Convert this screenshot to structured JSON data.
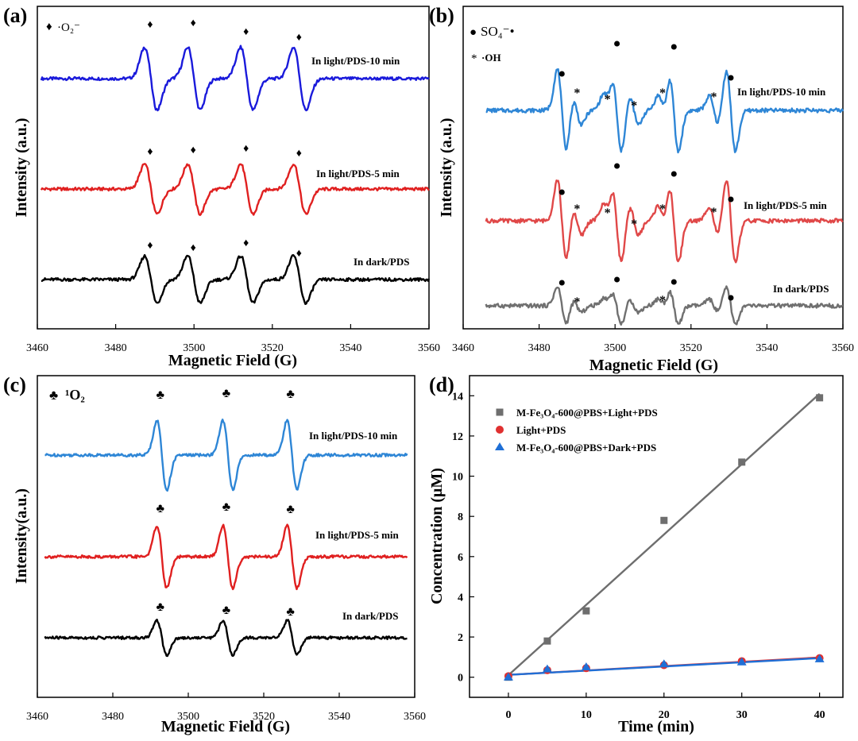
{
  "chart_data": [
    {
      "type": "line",
      "panel": "(a)",
      "xlabel": "Magnetic Field (G)",
      "ylabel": "Intensity (a.u.)",
      "xlim": [
        3460,
        3560
      ],
      "xticks": [
        "3460",
        "3480",
        "3500",
        "3520",
        "3540",
        "3560"
      ],
      "legend": [
        {
          "symbol": "♦",
          "label": "·O₂⁻"
        }
      ],
      "peak_positions": [
        3489,
        3500,
        3513.5,
        3527
      ],
      "series": [
        {
          "name": "In light/PDS-10 min",
          "color": "#1a1adb",
          "amplitude": 1.0,
          "marker": "♦"
        },
        {
          "name": "In light/PDS-5 min",
          "color": "#e02020",
          "amplitude": 0.8,
          "marker": "♦"
        },
        {
          "name": "In dark/PDS",
          "color": "#000000",
          "amplitude": 0.75,
          "marker": "♦"
        }
      ]
    },
    {
      "type": "line",
      "panel": "(b)",
      "xlabel": "Magnetic Field (G)",
      "ylabel": "Intensity (a.u.)",
      "xlim": [
        3460,
        3560
      ],
      "xticks": [
        "3460",
        "3480",
        "3500",
        "3520",
        "3540",
        "3560"
      ],
      "legend": [
        {
          "symbol": "●",
          "label": "SO₄⁻•"
        },
        {
          "symbol": "*",
          "label": "·OH"
        }
      ],
      "sulfate_peaks": [
        3486,
        3500.5,
        3515.5,
        3530.5
      ],
      "hydroxyl_peaks": [
        3490,
        3498,
        3505,
        3512.5,
        3526
      ],
      "series": [
        {
          "name": "In light/PDS-10 min",
          "color": "#2e86d6",
          "amplitude": 1.0
        },
        {
          "name": "In light/PDS-5 min",
          "color": "#e04848",
          "amplitude": 1.0
        },
        {
          "name": "In dark/PDS",
          "color": "#707070",
          "amplitude": 0.45
        }
      ]
    },
    {
      "type": "line",
      "panel": "(c)",
      "xlabel": "Magnetic Field (G)",
      "ylabel": "Intensity(a.u.)",
      "xlim": [
        3460,
        3560
      ],
      "xticks": [
        "3460",
        "3480",
        "3500",
        "3520",
        "3540",
        "3560"
      ],
      "legend": [
        {
          "symbol": "♣",
          "label": "¹O₂"
        }
      ],
      "peak_positions": [
        3493,
        3510.5,
        3527.5
      ],
      "series": [
        {
          "name": "In light/PDS-10 min",
          "color": "#2e86d6",
          "amplitude": 1.0,
          "marker": "♣"
        },
        {
          "name": "In light/PDS-5 min",
          "color": "#e02020",
          "amplitude": 0.9,
          "marker": "♣"
        },
        {
          "name": "In dark/PDS",
          "color": "#000000",
          "amplitude": 0.5,
          "marker": "♣"
        }
      ]
    },
    {
      "type": "scatter",
      "panel": "(d)",
      "xlabel": "Time (min)",
      "ylabel": "Concentration (μM)",
      "xlim": [
        -5,
        43
      ],
      "ylim": [
        -1,
        15
      ],
      "xticks": [
        0,
        10,
        20,
        30,
        40
      ],
      "yticks": [
        0,
        2,
        4,
        6,
        8,
        10,
        12,
        14
      ],
      "x": [
        0,
        5,
        10,
        20,
        30,
        40
      ],
      "series": [
        {
          "name": "M-Fe₃O₄-600@PBS+Light+PDS",
          "marker": "square",
          "color": "#6e6e6e",
          "values": [
            0.0,
            1.8,
            3.3,
            7.8,
            10.7,
            13.9
          ],
          "fit": [
            0.1,
            14.1
          ]
        },
        {
          "name": "Light+PDS",
          "marker": "circle",
          "color": "#e03030",
          "values": [
            0.05,
            0.35,
            0.45,
            0.6,
            0.8,
            0.95
          ],
          "fit": [
            0.12,
            0.98
          ]
        },
        {
          "name": "M-Fe₃O₄-600@PBS+Dark+PDS",
          "marker": "triangle",
          "color": "#1f6fd6",
          "values": [
            0.0,
            0.4,
            0.5,
            0.65,
            0.75,
            0.9
          ],
          "fit": [
            0.12,
            0.95
          ]
        }
      ]
    }
  ]
}
